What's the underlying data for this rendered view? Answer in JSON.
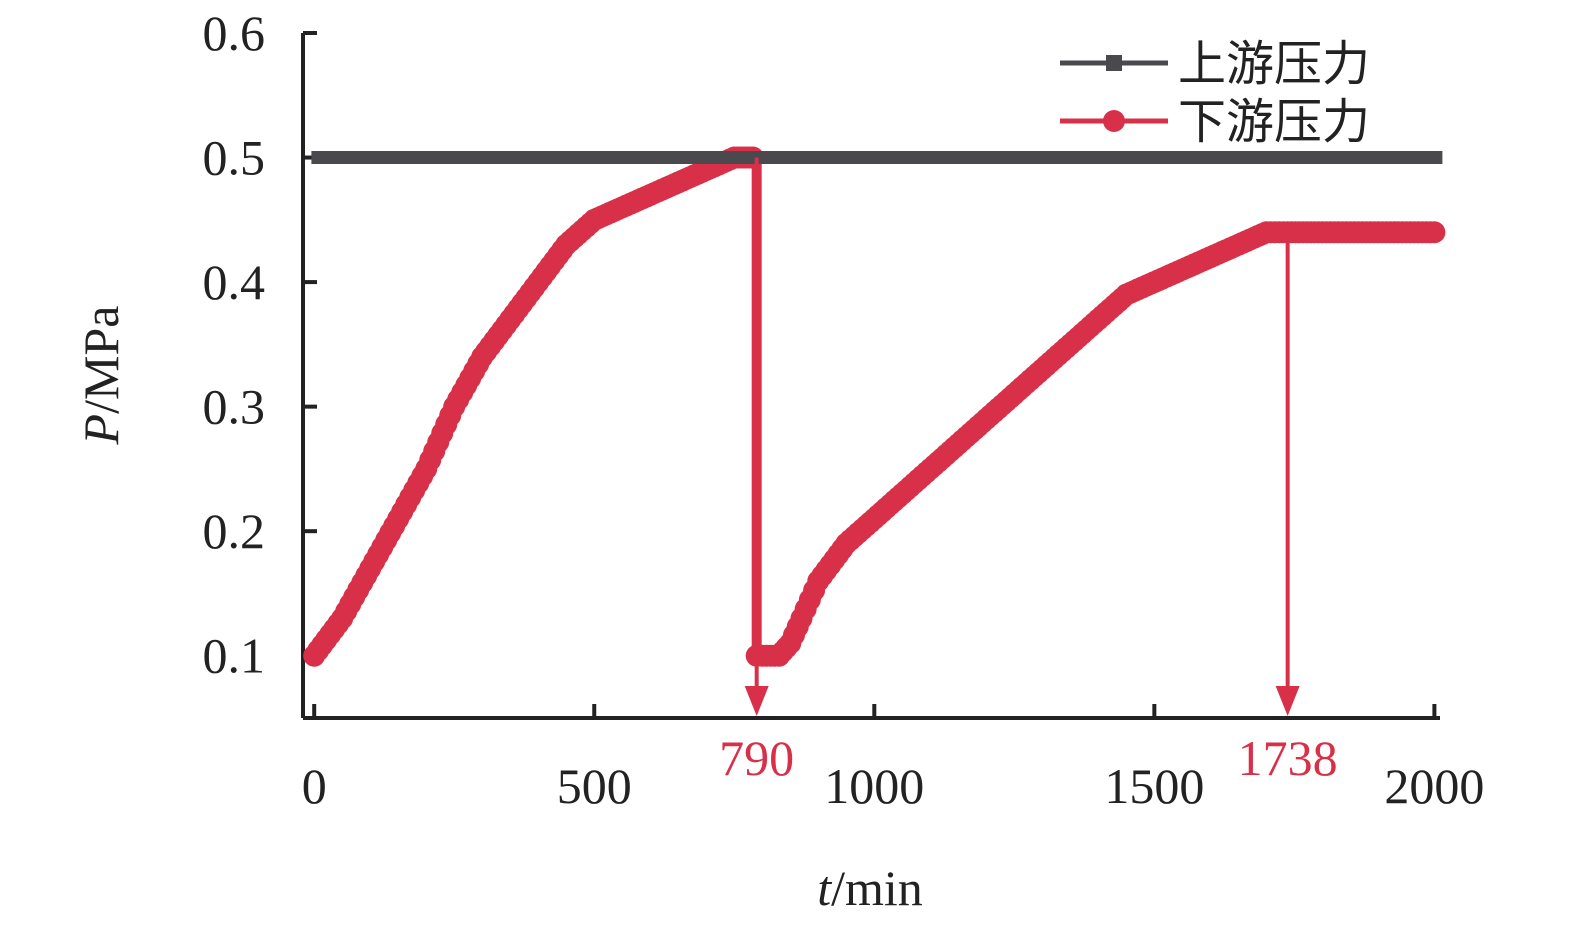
{
  "chart_data": {
    "type": "line",
    "xlabel_italic": "t",
    "xlabel_unit": "/min",
    "ylabel_italic": "P",
    "ylabel_unit": "/MPa",
    "xlim": [
      -20,
      2010
    ],
    "ylim": [
      0.05,
      0.6
    ],
    "x_ticks": [
      0,
      500,
      1000,
      1500,
      2000
    ],
    "y_ticks": [
      0.1,
      0.2,
      0.3,
      0.4,
      0.5,
      0.6
    ],
    "x_tick_labels": [
      "0",
      "500",
      "1000",
      "1500",
      "2000"
    ],
    "y_tick_labels": [
      "0.1",
      "0.2",
      "0.3",
      "0.4",
      "0.5",
      "0.6"
    ],
    "grid": false,
    "legend_position": "top-right",
    "series": [
      {
        "name": "上游压力",
        "color": "#4a4a4e",
        "marker": "square",
        "x": [
          0,
          2000
        ],
        "y": [
          0.5,
          0.5
        ]
      },
      {
        "name": "下游压力",
        "color": "#d83048",
        "marker": "circle",
        "x": [
          0,
          50,
          100,
          150,
          200,
          250,
          300,
          350,
          400,
          450,
          500,
          550,
          600,
          650,
          700,
          750,
          790,
          790,
          800,
          830,
          850,
          870,
          900,
          950,
          1000,
          1050,
          1100,
          1150,
          1200,
          1250,
          1300,
          1350,
          1400,
          1450,
          1500,
          1550,
          1600,
          1650,
          1700,
          1738,
          1800,
          1850,
          1900,
          1950,
          2000
        ],
        "y": [
          0.1,
          0.13,
          0.17,
          0.21,
          0.25,
          0.3,
          0.34,
          0.37,
          0.4,
          0.43,
          0.45,
          0.46,
          0.47,
          0.48,
          0.49,
          0.5,
          0.5,
          0.1,
          0.1,
          0.1,
          0.11,
          0.13,
          0.16,
          0.19,
          0.21,
          0.23,
          0.25,
          0.27,
          0.29,
          0.31,
          0.33,
          0.35,
          0.37,
          0.39,
          0.4,
          0.41,
          0.42,
          0.43,
          0.44,
          0.44,
          0.44,
          0.44,
          0.44,
          0.44,
          0.44
        ]
      }
    ],
    "annotations": [
      {
        "x": 790,
        "label": "790",
        "color": "#d83048"
      },
      {
        "x": 1738,
        "label": "1738",
        "color": "#d83048"
      }
    ]
  }
}
